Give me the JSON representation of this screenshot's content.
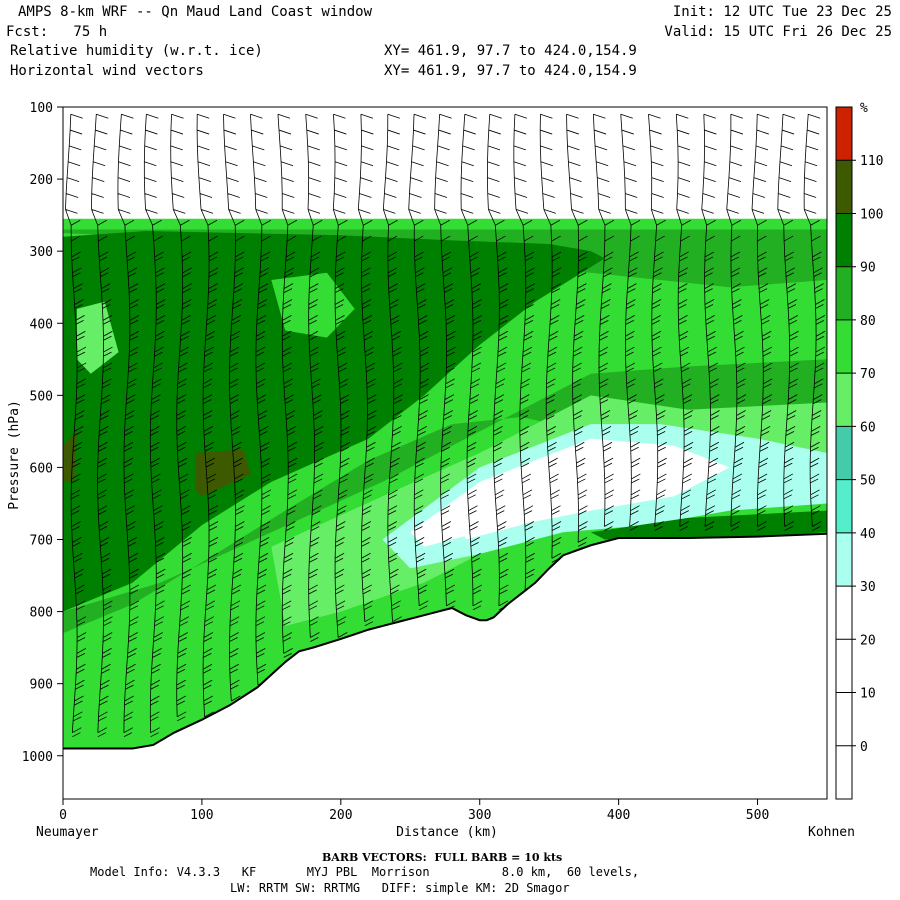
{
  "header": {
    "line1_left": "AMPS 8-km WRF -- Qn Maud Land Coast window",
    "line1_right": "Init: 12 UTC Tue 23 Dec 25",
    "line2_left": "Fcst:   75 h",
    "line2_right": "Valid: 15 UTC Fri 26 Dec 25",
    "line3_left": "Relative humidity (w.r.t. ice)",
    "line3_right": "XY= 461.9, 97.7 to 424.0,154.9",
    "line4_left": "Horizontal wind vectors",
    "line4_right": "XY= 461.9, 97.7 to 424.0,154.9"
  },
  "footer": {
    "barb_note": "BARB VECTORS:  FULL BARB = 10 kts",
    "model_info": "Model Info: V4.3.3   KF       MYJ PBL  Morrison          8.0 km,  60 levels,",
    "physics": "LW: RRTM SW: RRTMG   DIFF: simple KM: 2D Smagor"
  },
  "chart_data": {
    "type": "heatmap",
    "xlabel": "Distance (km)",
    "ylabel": "Pressure (hPa)",
    "x_ticks": [
      0,
      100,
      200,
      300,
      400,
      500
    ],
    "y_ticks": [
      100,
      200,
      300,
      400,
      500,
      600,
      700,
      800,
      900,
      1000
    ],
    "xlim": [
      0,
      550
    ],
    "ylim": [
      100,
      1060
    ],
    "x_left_label": "Neumayer",
    "x_right_label": "Kohnen",
    "colorbar": {
      "unit": "%",
      "levels": [
        110,
        100,
        90,
        80,
        70,
        60,
        50,
        40,
        30,
        20,
        10,
        0
      ],
      "colors": [
        "#cc2200",
        "#3d5a00",
        "#008000",
        "#22b022",
        "#33dd33",
        "#66ee66",
        "#44ccaa",
        "#55eecc",
        "#aaffee",
        "#ffffff",
        "#ffffff",
        "#ffffff",
        "#ffffff"
      ]
    },
    "terrain_surface": {
      "distance": [
        0,
        50,
        65,
        80,
        100,
        120,
        140,
        160,
        170,
        180,
        200,
        220,
        240,
        260,
        280,
        290,
        300,
        305,
        310,
        320,
        330,
        340,
        350,
        360,
        380,
        400,
        420,
        450,
        500,
        550
      ],
      "pressure": [
        990,
        990,
        985,
        968,
        950,
        930,
        905,
        870,
        855,
        850,
        838,
        825,
        815,
        805,
        795,
        805,
        812,
        812,
        808,
        790,
        775,
        760,
        740,
        722,
        708,
        698,
        698,
        698,
        696,
        692
      ]
    },
    "rh_regions": [
      {
        "level": 20,
        "distance": [
          0,
          550,
          550,
          0
        ],
        "pressure": [
          100,
          100,
          255,
          255
        ]
      },
      {
        "level": 80,
        "distance": [
          0,
          550,
          550,
          0
        ],
        "pressure": [
          255,
          255,
          990,
          990
        ]
      },
      {
        "level": 90,
        "distance": [
          0,
          550,
          550,
          480,
          380,
          300,
          200,
          120,
          60,
          0
        ],
        "pressure": [
          270,
          270,
          340,
          350,
          330,
          320,
          300,
          290,
          280,
          275
        ]
      },
      {
        "level": 100,
        "distance": [
          0,
          60,
          130,
          200,
          280,
          350,
          380,
          390,
          340,
          300,
          260,
          220,
          150,
          100,
          50,
          0
        ],
        "pressure": [
          280,
          272,
          275,
          278,
          285,
          290,
          300,
          310,
          370,
          430,
          500,
          560,
          620,
          680,
          760,
          800
        ]
      },
      {
        "level": 90,
        "distance": [
          0,
          70,
          150,
          230,
          300,
          380,
          450,
          550,
          550,
          480,
          400,
          330,
          280,
          220,
          160,
          110,
          50,
          0
        ],
        "pressure": [
          800,
          760,
          690,
          620,
          550,
          470,
          460,
          450,
          560,
          570,
          560,
          530,
          540,
          590,
          660,
          720,
          790,
          830
        ]
      },
      {
        "level": 70,
        "distance": [
          150,
          230,
          300,
          380,
          450,
          550,
          550,
          480,
          400,
          320,
          260,
          200,
          160
        ],
        "pressure": [
          710,
          640,
          580,
          500,
          520,
          510,
          620,
          650,
          660,
          700,
          760,
          800,
          820
        ]
      },
      {
        "level": 40,
        "distance": [
          230,
          300,
          380,
          430,
          500,
          550,
          550,
          480,
          420,
          360,
          300,
          250
        ],
        "pressure": [
          700,
          600,
          540,
          540,
          560,
          580,
          650,
          660,
          680,
          690,
          720,
          740
        ]
      },
      {
        "level": 30,
        "distance": [
          250,
          300,
          380,
          440,
          480,
          440,
          380,
          300,
          260
        ],
        "pressure": [
          690,
          620,
          560,
          570,
          600,
          640,
          660,
          690,
          710
        ]
      },
      {
        "level": 20,
        "distance": [
          280,
          330,
          380,
          330,
          290
        ],
        "pressure": [
          650,
          600,
          620,
          680,
          700
        ]
      },
      {
        "level": 100,
        "distance": [
          380,
          450,
          550,
          550,
          460,
          390
        ],
        "pressure": [
          690,
          670,
          660,
          690,
          700,
          700
        ]
      },
      {
        "level": 80,
        "distance": [
          150,
          190,
          210,
          190,
          160
        ],
        "pressure": [
          340,
          330,
          380,
          420,
          410
        ]
      },
      {
        "level": 110,
        "distance": [
          95,
          130,
          135,
          100,
          95
        ],
        "pressure": [
          580,
          575,
          610,
          640,
          630
        ]
      },
      {
        "level": 110,
        "distance": [
          0,
          10,
          8,
          0
        ],
        "pressure": [
          570,
          550,
          620,
          620
        ]
      },
      {
        "level": 70,
        "distance": [
          10,
          30,
          40,
          20,
          10
        ],
        "pressure": [
          380,
          370,
          440,
          470,
          450
        ]
      }
    ]
  }
}
